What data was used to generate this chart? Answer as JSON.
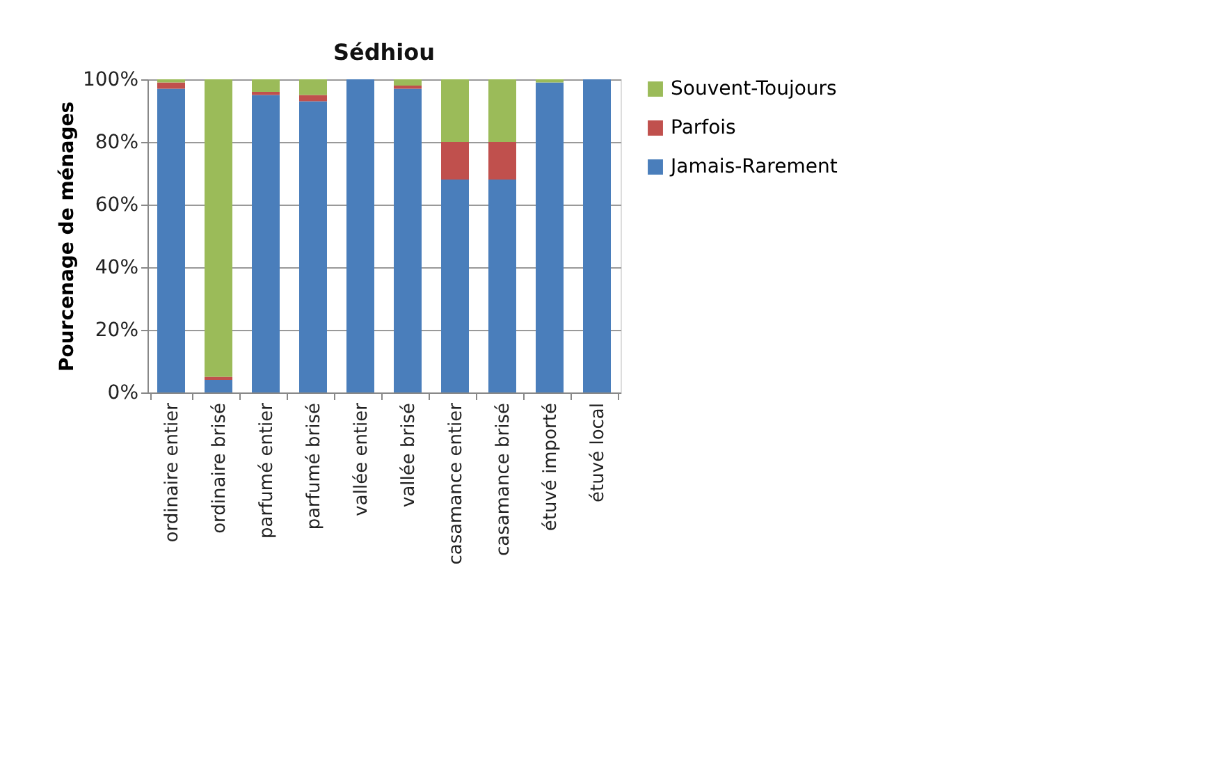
{
  "chart_data": {
    "type": "bar",
    "stacked": true,
    "title": "Sédhiou",
    "ylabel": "Pourcenage de ménages",
    "categories": [
      "ordinaire entier",
      "ordinaire brisé",
      "parfumé entier",
      "parfumé brisé",
      "vallée entier",
      "vallée brisé",
      "casamance entier",
      "casamance brisé",
      "étuvé importé",
      "étuvé local"
    ],
    "series": [
      {
        "name": "Jamais-Rarement",
        "color": "#4a7ebb",
        "values": [
          97,
          4,
          95,
          93,
          100,
          97,
          68,
          68,
          99,
          100
        ]
      },
      {
        "name": "Parfois",
        "color": "#c0504d",
        "values": [
          2,
          1,
          1,
          2,
          0,
          1,
          12,
          12,
          0,
          0
        ]
      },
      {
        "name": "Souvent-Toujours",
        "color": "#9bbb59",
        "values": [
          1,
          95,
          4,
          5,
          0,
          2,
          20,
          20,
          1,
          0
        ]
      }
    ],
    "ylim": [
      0,
      100
    ],
    "yticks": [
      {
        "value": 0,
        "label": "0%"
      },
      {
        "value": 20,
        "label": "20%"
      },
      {
        "value": 40,
        "label": "40%"
      },
      {
        "value": 60,
        "label": "60%"
      },
      {
        "value": 80,
        "label": "80%"
      },
      {
        "value": 100,
        "label": "100%"
      }
    ],
    "grid": "y",
    "legend": "right"
  }
}
